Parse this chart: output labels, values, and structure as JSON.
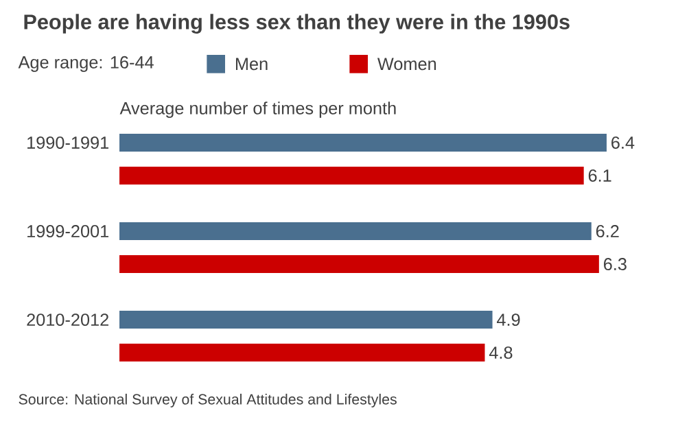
{
  "chart_data": {
    "type": "bar",
    "orientation": "horizontal",
    "title": "People are having less sex than they were in the 1990s",
    "subtitle": "Average number of times per month",
    "legend_title": "Age range: 16-44",
    "legend": "top left",
    "data_labels": true,
    "categories": [
      "1990-1991",
      "1999-2001",
      "2010-2012"
    ],
    "series": [
      {
        "name": "Men",
        "color": "#4a6f8f",
        "values": [
          6.4,
          6.2,
          4.9
        ]
      },
      {
        "name": "Women",
        "color": "#cc0000",
        "values": [
          6.1,
          6.3,
          4.8
        ]
      }
    ],
    "annotations": [
      "Source: National Survey of Sexual Attitudes and Lifestyles"
    ]
  }
}
